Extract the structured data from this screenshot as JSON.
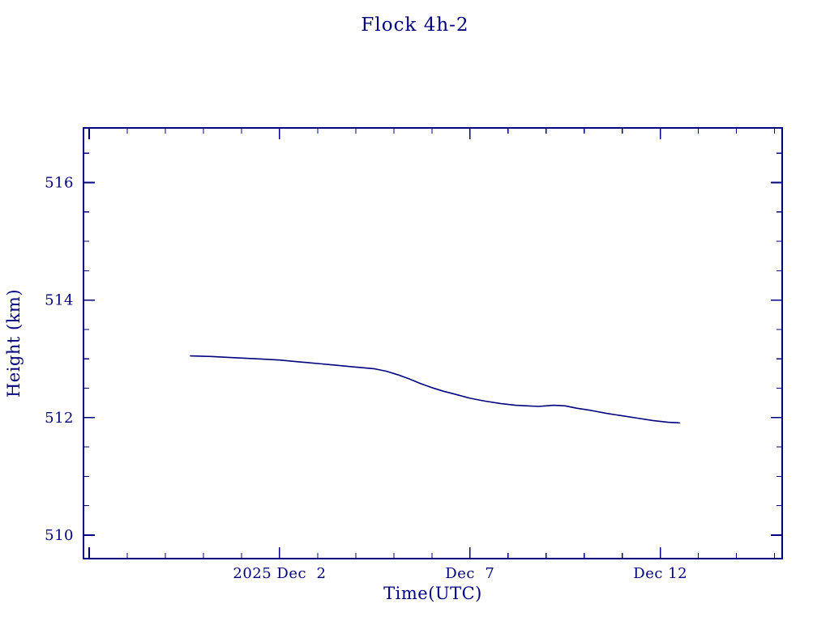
{
  "colors": {
    "plot": "#000080",
    "background": "#ffffff"
  },
  "chart_data": {
    "type": "line",
    "title": "Flock 4h-2",
    "xlabel": "Time(UTC)",
    "ylabel": "Height (km)",
    "x_unit": "days relative to 2025 Dec 2 (UTC)",
    "xlim": [
      -5.15,
      13.2
    ],
    "ylim": [
      509.6,
      516.93
    ],
    "grid": false,
    "legend": false,
    "x_major_ticks": [
      {
        "value": 0,
        "label": "2025 Dec  2"
      },
      {
        "value": 5,
        "label": "Dec  7"
      },
      {
        "value": 10,
        "label": "Dec 12"
      }
    ],
    "x_minor_step": 1,
    "x_major_step": 5,
    "y_major_ticks": [
      {
        "value": 510,
        "label": "510"
      },
      {
        "value": 512,
        "label": "512"
      },
      {
        "value": 514,
        "label": "514"
      },
      {
        "value": 516,
        "label": "516"
      }
    ],
    "y_minor_step": 0.5,
    "y_major_step": 2,
    "series": [
      {
        "name": "Flock 4h-2 orbital height",
        "x": [
          -2.34,
          -1.8,
          -1.2,
          -0.6,
          0,
          0.5,
          1.0,
          1.5,
          2.0,
          2.5,
          2.8,
          3.1,
          3.4,
          3.7,
          4.0,
          4.3,
          4.6,
          5.0,
          5.4,
          5.8,
          6.2,
          6.5,
          6.8,
          7.0,
          7.2,
          7.5,
          7.8,
          8.2,
          8.6,
          9.0,
          9.4,
          9.8,
          10.2,
          10.5
        ],
        "y": [
          513.05,
          513.04,
          513.02,
          513.0,
          512.98,
          512.95,
          512.92,
          512.89,
          512.86,
          512.83,
          512.79,
          512.73,
          512.66,
          512.58,
          512.51,
          512.45,
          512.4,
          512.33,
          512.28,
          512.24,
          512.21,
          512.2,
          512.19,
          512.2,
          512.21,
          512.2,
          512.16,
          512.12,
          512.07,
          512.03,
          511.99,
          511.95,
          511.92,
          511.91
        ]
      }
    ]
  }
}
